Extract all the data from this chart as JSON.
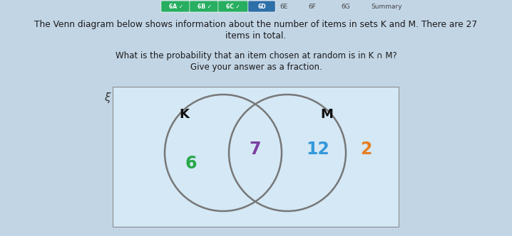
{
  "bg_color": "#c2d5e5",
  "title_text1": "The Venn diagram below shows information about the number of items in sets K and M. There are 27",
  "title_text2": "items in total.",
  "question_line1": "What is the probability that an item chosen at random is in K ∩ M?",
  "question_line2": "Give your answer as a fraction.",
  "tab_active_color": "#2d6fa8",
  "venn_rect_color": "#d4e8f5",
  "venn_rect_edge": "#888888",
  "circle_color": "#777777",
  "xi_label": "ξ",
  "k_label": "K",
  "m_label": "M",
  "val_k_only": "6",
  "val_k_only_color": "#27a84a",
  "val_intersect": "7",
  "val_intersect_color": "#7b3fa0",
  "val_m_only": "12",
  "val_m_only_color": "#3498db",
  "val_outside": "2",
  "val_outside_color": "#e67e22",
  "prev_tabs": [
    "6A",
    "6B",
    "6C"
  ],
  "tab_labels_inactive": [
    "6E",
    "6F",
    "6G",
    "Summary"
  ]
}
